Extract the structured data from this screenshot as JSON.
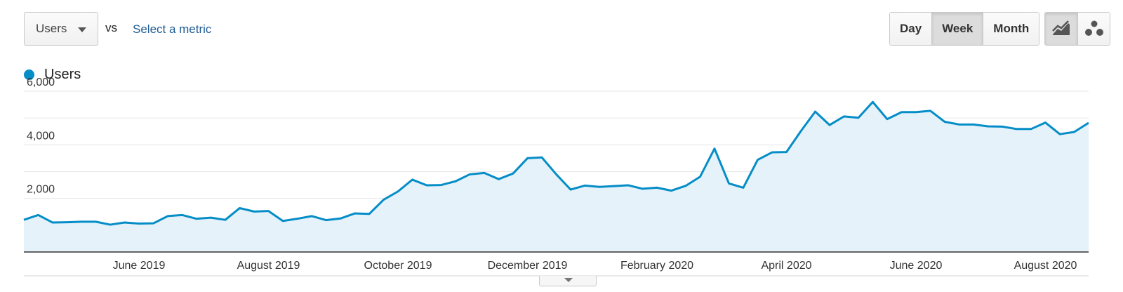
{
  "controls": {
    "metric_select": "Users",
    "vs_label": "vs",
    "select_metric": "Select a metric",
    "periods": [
      "Day",
      "Week",
      "Month"
    ],
    "active_period": "Week",
    "chart_types": [
      "line-chart-icon",
      "motion-chart-icon"
    ],
    "active_chart_type": "line-chart-icon"
  },
  "legend": {
    "series_name": "Users"
  },
  "colors": {
    "line": "#058dc7",
    "fill": "#e5f2f9",
    "grid": "#e6e6e6",
    "axis": "#333333"
  },
  "chart_data": {
    "type": "area",
    "title": "",
    "xlabel": "",
    "ylabel": "",
    "ylim": [
      0,
      6000
    ],
    "yticks": [
      2000,
      4000,
      6000
    ],
    "ytick_labels": [
      "2,000",
      "4,000",
      "6,000"
    ],
    "grid": true,
    "legend_placement": "top-left",
    "xtick_labels": [
      "June 2019",
      "August 2019",
      "October 2019",
      "December 2019",
      "February 2020",
      "April 2020",
      "June 2020",
      "August 2020"
    ],
    "xtick_index": [
      8,
      17,
      26,
      35,
      44,
      53,
      62,
      71
    ],
    "x_start": "2019-04-07",
    "x_interval": "week",
    "series": [
      {
        "name": "Users",
        "values": [
          1200,
          1380,
          1100,
          1110,
          1130,
          1130,
          1020,
          1100,
          1060,
          1070,
          1340,
          1380,
          1240,
          1280,
          1200,
          1640,
          1510,
          1530,
          1160,
          1240,
          1340,
          1190,
          1250,
          1440,
          1420,
          1950,
          2260,
          2700,
          2490,
          2500,
          2640,
          2900,
          2950,
          2720,
          2930,
          3500,
          3530,
          2900,
          2330,
          2480,
          2430,
          2460,
          2490,
          2360,
          2400,
          2290,
          2470,
          2810,
          3860,
          2560,
          2400,
          3440,
          3720,
          3730,
          4510,
          5240,
          4740,
          5060,
          5010,
          5600,
          4960,
          5220,
          5220,
          5270,
          4860,
          4760,
          4760,
          4690,
          4680,
          4590,
          4590,
          4830,
          4400,
          4480,
          4820
        ]
      }
    ]
  }
}
